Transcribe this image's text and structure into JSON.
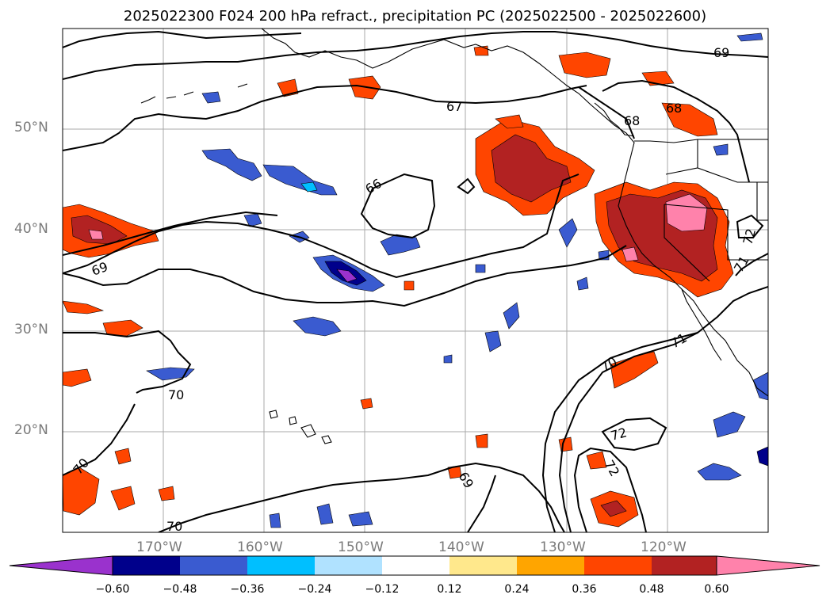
{
  "title": "2025022300 F024 200 hPa refract., precipitation PC (2025022500 - 2025022600)",
  "lat_labels": [
    "50°N",
    "40°N",
    "30°N",
    "20°N"
  ],
  "lon_labels": [
    "170°W",
    "160°W",
    "150°W",
    "140°W",
    "130°W",
    "120°W"
  ],
  "contour_labels": [
    "66",
    "67",
    "68",
    "68",
    "69",
    "69",
    "69",
    "70",
    "70",
    "70",
    "70",
    "71",
    "71",
    "72",
    "72",
    "72"
  ],
  "colorbar": {
    "ticks": [
      "−0.60",
      "−0.48",
      "−0.36",
      "−0.24",
      "−0.12",
      "0.12",
      "0.24",
      "0.36",
      "0.48",
      "0.60"
    ],
    "colors": [
      "#9a32cd",
      "#00008b",
      "#3a5bd0",
      "#00bfff",
      "#b0e2ff",
      "#ffffff",
      "#ffe88c",
      "#ffa500",
      "#ff4500",
      "#b22222",
      "#ff82ab"
    ]
  },
  "precip_colors": {
    "neg_light": "#b0e2ff",
    "neg_mid": "#00bfff",
    "neg_strong": "#3a5bd0",
    "neg_dark": "#00008b",
    "neg_extreme": "#9a32cd",
    "pos_light": "#ffe88c",
    "pos_mid": "#ffa500",
    "pos_strong": "#ff4500",
    "pos_dark": "#b22222",
    "pos_extreme": "#ff82ab"
  }
}
